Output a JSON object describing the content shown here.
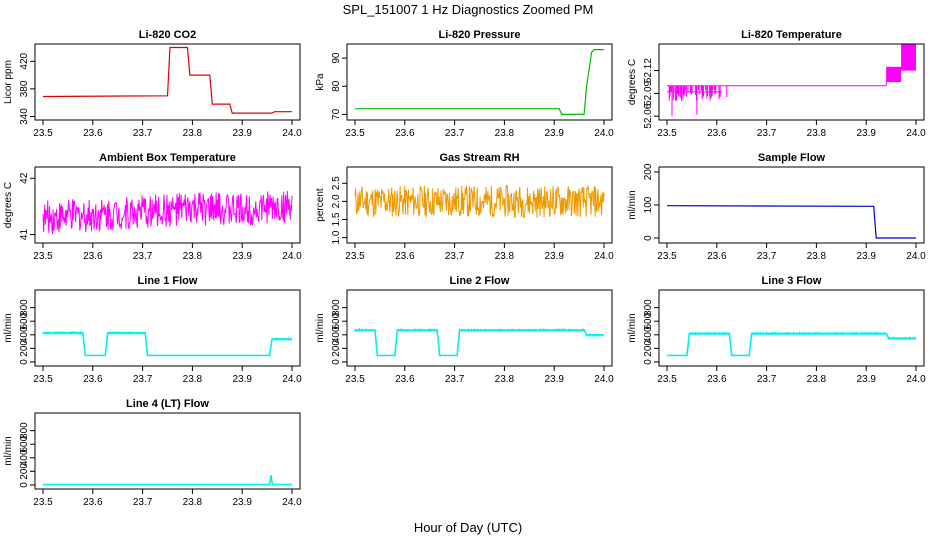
{
  "title": "SPL_151007  1 Hz Diagnostics Zoomed PM",
  "xlabel": "Hour of Day (UTC)",
  "colors": {
    "red": "#dd0000",
    "green": "#00bb00",
    "magenta": "#ff00ff",
    "orange": "#ee9900",
    "blue": "#0000cc",
    "cyan": "#00eeee"
  },
  "chart_data": [
    {
      "type": "line",
      "title": "Li-820 CO2",
      "ylabel": "Licor ppm",
      "color": "red",
      "xlim": [
        23.5,
        24.0
      ],
      "xticks": [
        23.5,
        23.6,
        23.7,
        23.8,
        23.9,
        24.0
      ],
      "ylim": [
        335,
        445
      ],
      "yticks": [
        340,
        380,
        420
      ],
      "series": [
        {
          "x": [
            23.5,
            23.75,
            23.755,
            23.79,
            23.795,
            23.835,
            23.84,
            23.875,
            23.88,
            23.96,
            23.965,
            24.0
          ],
          "y": [
            369,
            370,
            440,
            440,
            400,
            400,
            358,
            358,
            345,
            345,
            347,
            347
          ]
        }
      ]
    },
    {
      "type": "line",
      "title": "Li-820 Pressure",
      "ylabel": "kPa",
      "color": "green",
      "xlim": [
        23.5,
        24.0
      ],
      "xticks": [
        23.5,
        23.6,
        23.7,
        23.8,
        23.9,
        24.0
      ],
      "ylim": [
        68,
        95
      ],
      "yticks": [
        70,
        80,
        90
      ],
      "series": [
        {
          "x": [
            23.5,
            23.91,
            23.915,
            23.96,
            23.965,
            23.975,
            23.98,
            24.0
          ],
          "y": [
            72,
            72,
            70,
            70,
            80,
            92,
            93,
            93
          ]
        }
      ]
    },
    {
      "type": "line",
      "title": "Li-820 Temperature",
      "ylabel": "degrees C",
      "color": "magenta",
      "xlim": [
        23.5,
        24.0
      ],
      "xticks": [
        23.5,
        23.6,
        23.7,
        23.8,
        23.9,
        24.0
      ],
      "ylim": [
        52.055,
        52.155
      ],
      "yticks": [
        52.06,
        52.09,
        52.12
      ],
      "series": [
        {
          "x": [
            23.5,
            23.94,
            23.945,
            23.97,
            23.975,
            24.0
          ],
          "y": [
            52.1,
            52.1,
            52.12,
            52.12,
            52.14,
            52.14
          ]
        }
      ]
    },
    {
      "type": "line",
      "title": "Ambient Box Temperature",
      "ylabel": "degrees C",
      "color": "magenta",
      "xlim": [
        23.5,
        24.0
      ],
      "xticks": [
        23.5,
        23.6,
        23.7,
        23.8,
        23.9,
        24.0
      ],
      "ylim": [
        40.85,
        42.2
      ],
      "yticks": [
        41.0,
        42.0
      ],
      "series": [
        {
          "x": [
            23.5,
            23.6,
            23.7,
            23.8,
            23.9,
            24.0
          ],
          "y": [
            41.3,
            41.35,
            41.4,
            41.45,
            41.45,
            41.5
          ]
        }
      ]
    },
    {
      "type": "line",
      "title": "Gas Stream RH",
      "ylabel": "percent",
      "color": "orange",
      "xlim": [
        23.5,
        24.0
      ],
      "xticks": [
        23.5,
        23.6,
        23.7,
        23.8,
        23.9,
        24.0
      ],
      "ylim": [
        0.85,
        2.95
      ],
      "yticks": [
        1.0,
        1.5,
        2.0,
        2.5
      ],
      "series": [
        {
          "x": [
            23.5,
            23.6,
            23.7,
            23.8,
            23.9,
            24.0
          ],
          "y": [
            2.0,
            2.0,
            2.0,
            2.0,
            2.0,
            2.0
          ]
        }
      ]
    },
    {
      "type": "line",
      "title": "Sample Flow",
      "ylabel": "ml/min",
      "color": "blue",
      "xlim": [
        23.5,
        24.0
      ],
      "xticks": [
        23.5,
        23.6,
        23.7,
        23.8,
        23.9,
        24.0
      ],
      "ylim": [
        -15,
        215
      ],
      "yticks": [
        0,
        100,
        200
      ],
      "series": [
        {
          "x": [
            23.5,
            23.915,
            23.92,
            24.0
          ],
          "y": [
            98,
            96,
            0,
            0
          ]
        }
      ]
    },
    {
      "type": "line",
      "title": "Line 1 Flow",
      "ylabel": "ml/min",
      "color": "cyan",
      "xlim": [
        23.5,
        24.0
      ],
      "xticks": [
        23.5,
        23.6,
        23.7,
        23.8,
        23.9,
        24.0
      ],
      "ylim": [
        -60,
        1060
      ],
      "yticks": [
        0,
        200,
        400,
        600,
        800
      ],
      "series": [
        {
          "x": [
            23.5,
            23.58,
            23.585,
            23.625,
            23.63,
            23.705,
            23.71,
            23.955,
            23.96,
            24.0
          ],
          "y": [
            430,
            430,
            95,
            95,
            430,
            430,
            95,
            95,
            340,
            340
          ]
        }
      ]
    },
    {
      "type": "line",
      "title": "Line 2 Flow",
      "ylabel": "ml/min",
      "color": "cyan",
      "xlim": [
        23.5,
        24.0
      ],
      "xticks": [
        23.5,
        23.6,
        23.7,
        23.8,
        23.9,
        24.0
      ],
      "ylim": [
        -60,
        1060
      ],
      "yticks": [
        0,
        200,
        400,
        600,
        800
      ],
      "series": [
        {
          "x": [
            23.5,
            23.54,
            23.545,
            23.58,
            23.585,
            23.665,
            23.67,
            23.705,
            23.71,
            23.96,
            23.965,
            24.0
          ],
          "y": [
            470,
            470,
            95,
            95,
            470,
            470,
            95,
            95,
            470,
            470,
            400,
            400
          ]
        }
      ]
    },
    {
      "type": "line",
      "title": "Line 3 Flow",
      "ylabel": "ml/min",
      "color": "cyan",
      "xlim": [
        23.5,
        24.0
      ],
      "xticks": [
        23.5,
        23.6,
        23.7,
        23.8,
        23.9,
        24.0
      ],
      "ylim": [
        -60,
        1060
      ],
      "yticks": [
        0,
        200,
        400,
        600,
        800
      ],
      "series": [
        {
          "x": [
            23.5,
            23.505,
            23.54,
            23.545,
            23.625,
            23.63,
            23.665,
            23.67,
            23.94,
            23.945,
            24.0
          ],
          "y": [
            95,
            95,
            95,
            420,
            420,
            95,
            95,
            420,
            420,
            350,
            350
          ]
        }
      ]
    },
    {
      "type": "line",
      "title": "Line 4 (LT) Flow",
      "ylabel": "ml/min",
      "color": "cyan",
      "xlim": [
        23.5,
        24.0
      ],
      "xticks": [
        23.5,
        23.6,
        23.7,
        23.8,
        23.9,
        24.0
      ],
      "ylim": [
        -60,
        1060
      ],
      "yticks": [
        0,
        200,
        400,
        600,
        800
      ],
      "series": [
        {
          "x": [
            23.5,
            23.955,
            23.958,
            23.96,
            23.962,
            24.0
          ],
          "y": [
            5,
            5,
            140,
            30,
            5,
            5
          ]
        }
      ]
    }
  ]
}
